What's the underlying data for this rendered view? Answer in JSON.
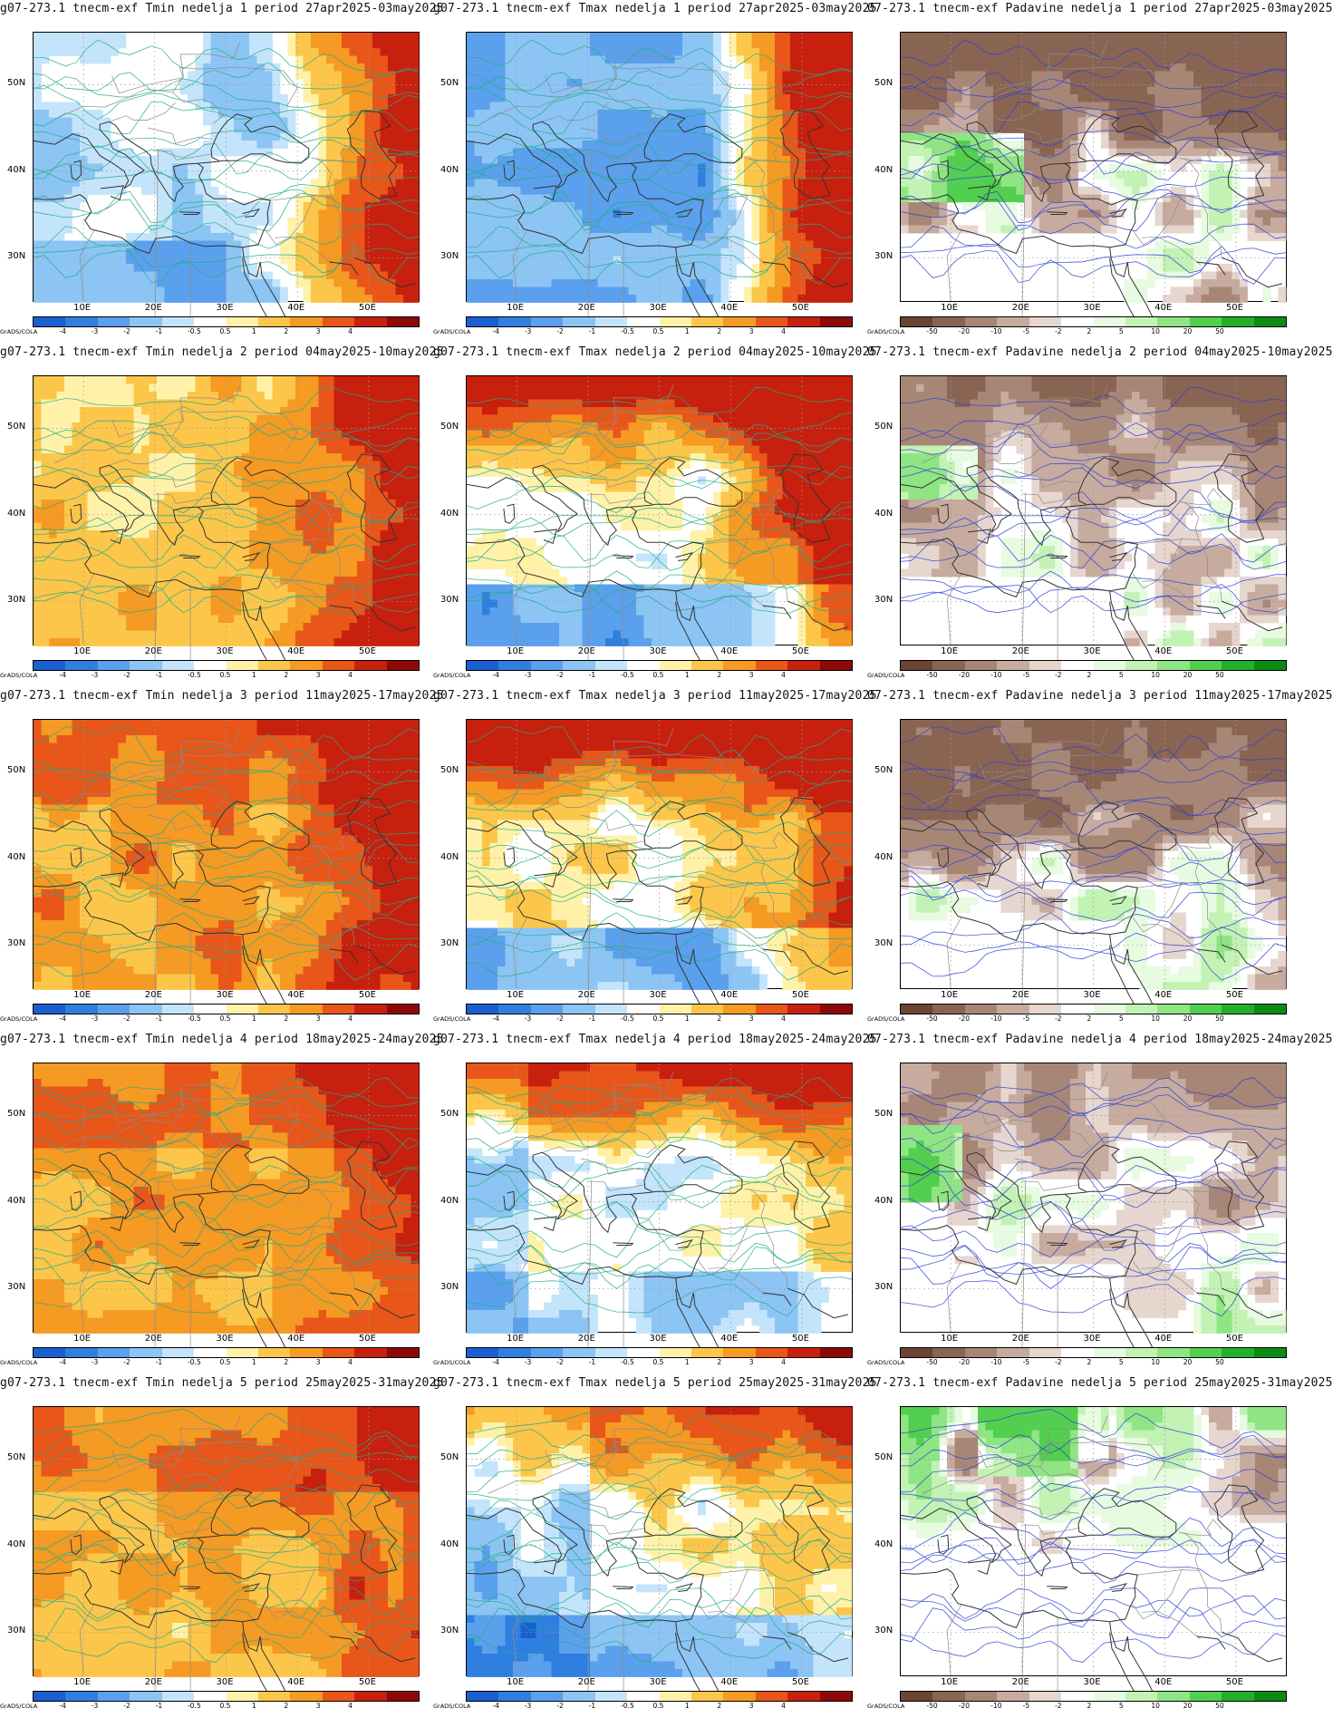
{
  "panels": [
    {
      "title": "g07-273.1 tnecm-exf Tmin nedelja 1 period 27apr2025-03may2025",
      "kind": "tmin",
      "week": 1
    },
    {
      "title": "g07-273.1 tnecm-exf Tmax nedelja 1 period 27apr2025-03may2025",
      "kind": "tmax",
      "week": 1
    },
    {
      "title": "07-273.1 tnecm-exf Padavine nedelja 1 period 27apr2025-03may2025",
      "kind": "prec",
      "week": 1
    },
    {
      "title": "g07-273.1 tnecm-exf Tmin nedelja 2 period 04may2025-10may2025",
      "kind": "tmin",
      "week": 2
    },
    {
      "title": "g07-273.1 tnecm-exf Tmax nedelja 2 period 04may2025-10may2025",
      "kind": "tmax",
      "week": 2
    },
    {
      "title": "07-273.1 tnecm-exf Padavine nedelja 2 period 04may2025-10may2025",
      "kind": "prec",
      "week": 2
    },
    {
      "title": "g07-273.1 tnecm-exf Tmin nedelja 3 period 11may2025-17may2025",
      "kind": "tmin",
      "week": 3
    },
    {
      "title": "g07-273.1 tnecm-exf Tmax nedelja 3 period 11may2025-17may2025",
      "kind": "tmax",
      "week": 3
    },
    {
      "title": "07-273.1 tnecm-exf Padavine nedelja 3 period 11may2025-17may2025",
      "kind": "prec",
      "week": 3
    },
    {
      "title": "g07-273.1 tnecm-exf Tmin nedelja 4 period 18may2025-24may2025",
      "kind": "tmin",
      "week": 4
    },
    {
      "title": "g07-273.1 tnecm-exf Tmax nedelja 4 period 18may2025-24may2025",
      "kind": "tmax",
      "week": 4
    },
    {
      "title": "07-273.1 tnecm-exf Padavine nedelja 4 period 18may2025-24may2025",
      "kind": "prec",
      "week": 4
    },
    {
      "title": "g07-273.1 tnecm-exf Tmin nedelja 5 period 25may2025-31may2025",
      "kind": "tmin",
      "week": 5
    },
    {
      "title": "g07-273.1 tnecm-exf Tmax nedelja 5 period 25may2025-31may2025",
      "kind": "tmax",
      "week": 5
    },
    {
      "title": "07-273.1 tnecm-exf Padavine nedelja 5 period 25may2025-31may2025",
      "kind": "prec",
      "week": 5
    }
  ],
  "axes": {
    "lat_labels": [
      "50N",
      "40N",
      "30N"
    ],
    "lon_labels": [
      "10E",
      "20E",
      "30E",
      "40E",
      "50E"
    ]
  },
  "temp_scale": {
    "tick_labels": [
      "-4",
      "-3",
      "-2",
      "-1",
      "-0.5",
      "0.5",
      "1",
      "2",
      "3",
      "4"
    ],
    "colors": [
      "#1a5fd0",
      "#2f7fe0",
      "#5aa0ec",
      "#8cc4f4",
      "#c4e4fb",
      "#ffffff",
      "#fff2a8",
      "#fcc64a",
      "#f59a22",
      "#e8561a",
      "#c8200e",
      "#8e0808"
    ]
  },
  "prec_scale": {
    "tick_labels": [
      "-50",
      "-20",
      "-10",
      "-5",
      "-2",
      "2",
      "5",
      "10",
      "20",
      "50"
    ],
    "colors": [
      "#6b4433",
      "#8a6452",
      "#a88676",
      "#c6ab9e",
      "#e6d6ce",
      "#ffffff",
      "#e6fbe0",
      "#c2f2b4",
      "#8fe483",
      "#53cf4f",
      "#22b02a",
      "#0b8b14"
    ]
  },
  "credit": "GrADS/COLA"
}
